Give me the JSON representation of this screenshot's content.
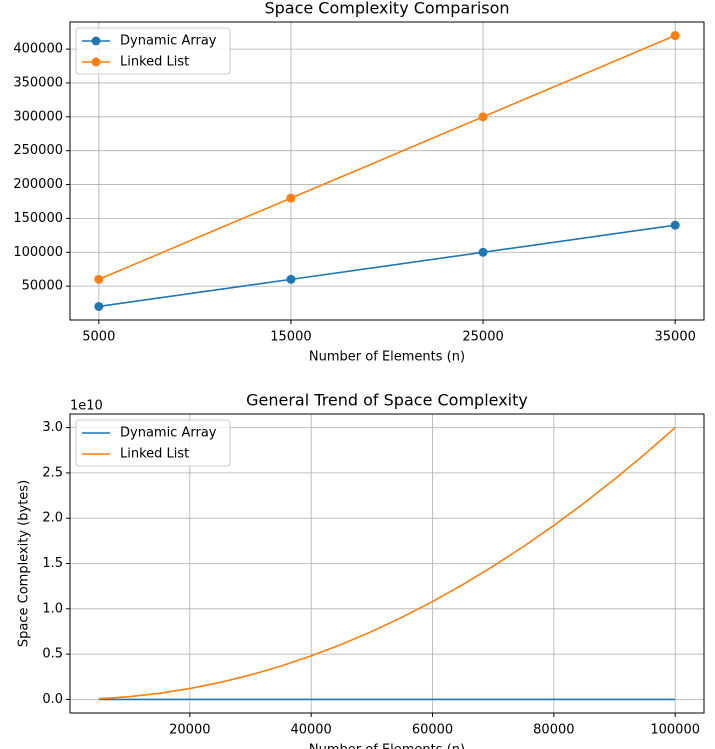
{
  "chart_data": [
    {
      "type": "line",
      "title": "Space Complexity Comparison",
      "xlabel": "Number of Elements (n)",
      "x": [
        5000,
        15000,
        25000,
        35000
      ],
      "series": [
        {
          "name": "Dynamic Array",
          "color": "#1f77b4",
          "values": [
            20000,
            60000,
            100000,
            140000
          ]
        },
        {
          "name": "Linked List",
          "color": "#ff7f0e",
          "values": [
            60000,
            180000,
            300000,
            420000
          ]
        }
      ],
      "markers": true,
      "xlim": [
        3500,
        36500
      ],
      "xticks": [
        5000,
        15000,
        25000,
        35000
      ],
      "ylim": [
        0,
        440000
      ],
      "yticks": [
        50000,
        100000,
        150000,
        200000,
        250000,
        300000,
        350000,
        400000
      ],
      "grid": true,
      "legend": "upper left"
    },
    {
      "type": "line",
      "title": "General Trend of Space Complexity",
      "xlabel": "Number of Elements (n)",
      "ylabel": "Space Complexity (bytes)",
      "y_offset_label": "1e10",
      "x": [
        5000,
        10000,
        15000,
        20000,
        25000,
        30000,
        35000,
        40000,
        45000,
        50000,
        55000,
        60000,
        65000,
        70000,
        75000,
        80000,
        85000,
        90000,
        95000,
        100000
      ],
      "series": [
        {
          "name": "Dynamic Array",
          "color": "#1f77b4",
          "values": [
            20000,
            40000,
            60000,
            80000,
            100000,
            120000,
            140000,
            160000,
            180000,
            200000,
            220000,
            240000,
            260000,
            280000,
            300000,
            320000,
            340000,
            360000,
            380000,
            400000
          ]
        },
        {
          "name": "Linked List",
          "color": "#ff7f0e",
          "values": [
            75000000,
            300000000,
            675000000,
            1200000000,
            1875000000,
            2700000000,
            3675000000,
            4800000000,
            6075000000,
            7500000000,
            9075000000,
            10800000000,
            12675000000,
            14700000000,
            16875000000,
            19200000000,
            21675000000,
            24300000000,
            27075000000,
            30000000000
          ]
        }
      ],
      "markers": false,
      "xlim": [
        250,
        104750
      ],
      "xticks": [
        20000,
        40000,
        60000,
        80000,
        100000
      ],
      "ylim": [
        -1500000000,
        31500000000
      ],
      "yticks": [
        {
          "value": 0,
          "label": "0.0"
        },
        {
          "value": 5000000000,
          "label": "0.5"
        },
        {
          "value": 10000000000,
          "label": "1.0"
        },
        {
          "value": 15000000000,
          "label": "1.5"
        },
        {
          "value": 20000000000,
          "label": "2.0"
        },
        {
          "value": 25000000000,
          "label": "2.5"
        },
        {
          "value": 30000000000,
          "label": "3.0"
        }
      ],
      "grid": true,
      "legend": "upper left"
    }
  ]
}
